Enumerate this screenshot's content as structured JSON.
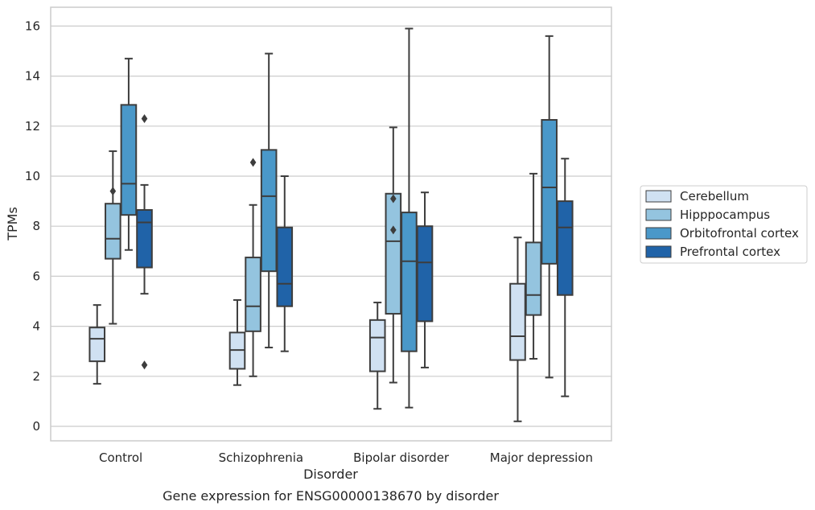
{
  "chart_data": {
    "type": "box",
    "title": "Gene expression for ENSG00000138670 by disorder",
    "xlabel": "Disorder",
    "ylabel": "TPMs",
    "ylim": [
      -0.5,
      16.7
    ],
    "yticks": [
      0,
      2,
      4,
      6,
      8,
      10,
      12,
      14,
      16
    ],
    "grid": true,
    "legend_position": "right",
    "categories": [
      "Control",
      "Schizophrenia",
      "Bipolar disorder",
      "Major depression"
    ],
    "series": [
      {
        "name": "Cerebellum",
        "color": "#d0e1f2",
        "boxes": [
          {
            "min": 1.7,
            "q1": 2.6,
            "median": 3.5,
            "q3": 3.95,
            "max": 4.85,
            "outliers": []
          },
          {
            "min": 1.65,
            "q1": 2.3,
            "median": 3.05,
            "q3": 3.75,
            "max": 5.05,
            "outliers": []
          },
          {
            "min": 0.7,
            "q1": 2.2,
            "median": 3.55,
            "q3": 4.25,
            "max": 4.95,
            "outliers": []
          },
          {
            "min": 0.2,
            "q1": 2.65,
            "median": 3.6,
            "q3": 5.7,
            "max": 7.55,
            "outliers": []
          }
        ]
      },
      {
        "name": "Hipppocampus",
        "color": "#94c4df",
        "boxes": [
          {
            "min": 4.1,
            "q1": 6.7,
            "median": 7.5,
            "q3": 8.9,
            "max": 11.0,
            "outliers": [
              9.4
            ]
          },
          {
            "min": 2.0,
            "q1": 3.8,
            "median": 4.8,
            "q3": 6.75,
            "max": 8.85,
            "outliers": [
              10.55
            ]
          },
          {
            "min": 1.75,
            "q1": 4.5,
            "median": 7.4,
            "q3": 9.3,
            "max": 11.95,
            "outliers": [
              9.1,
              7.85
            ]
          },
          {
            "min": 2.7,
            "q1": 4.45,
            "median": 5.25,
            "q3": 7.35,
            "max": 10.1,
            "outliers": []
          }
        ]
      },
      {
        "name": "Orbitofrontal cortex",
        "color": "#4a98c9",
        "boxes": [
          {
            "min": 7.05,
            "q1": 8.45,
            "median": 9.7,
            "q3": 12.85,
            "max": 14.7,
            "outliers": []
          },
          {
            "min": 3.15,
            "q1": 6.2,
            "median": 9.2,
            "q3": 11.05,
            "max": 14.9,
            "outliers": []
          },
          {
            "min": 0.75,
            "q1": 3.0,
            "median": 6.6,
            "q3": 8.55,
            "max": 15.9,
            "outliers": []
          },
          {
            "min": 1.95,
            "q1": 6.5,
            "median": 9.55,
            "q3": 12.25,
            "max": 15.6,
            "outliers": []
          }
        ]
      },
      {
        "name": "Prefrontal cortex",
        "color": "#2063a8",
        "boxes": [
          {
            "min": 5.3,
            "q1": 6.35,
            "median": 8.15,
            "q3": 8.65,
            "max": 9.65,
            "outliers": [
              12.3,
              2.45
            ]
          },
          {
            "min": 3.0,
            "q1": 4.8,
            "median": 5.7,
            "q3": 7.95,
            "max": 10.0,
            "outliers": []
          },
          {
            "min": 2.35,
            "q1": 4.2,
            "median": 6.55,
            "q3": 8.0,
            "max": 9.35,
            "outliers": []
          },
          {
            "min": 1.2,
            "q1": 5.25,
            "median": 7.95,
            "q3": 9.0,
            "max": 10.7,
            "outliers": []
          }
        ]
      }
    ]
  }
}
